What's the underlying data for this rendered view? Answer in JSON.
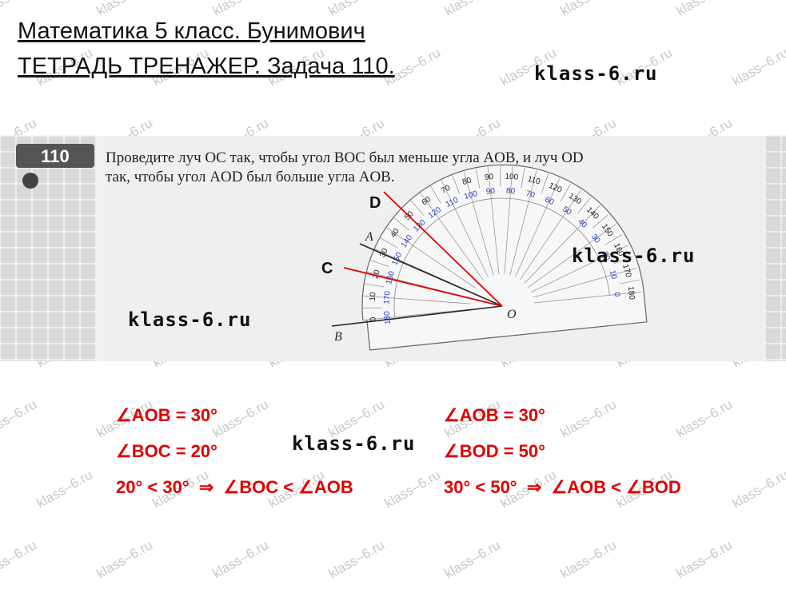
{
  "header": {
    "lines": [
      "Математика 5 класс. Бунимович",
      "ТЕТРАДЬ ТРЕНАЖЕР. Задача 110."
    ]
  },
  "watermark": {
    "bold": "klass-6.ru",
    "faint": "klass–6.ru"
  },
  "problem": {
    "number": "110",
    "text": [
      "Проведите луч OC так, чтобы угол BOC был меньше угла AOB, и луч OD",
      "так, чтобы угол AOD был больше угла AOB."
    ]
  },
  "figure": {
    "ray_labels": [
      "D",
      "A",
      "C",
      "B",
      "O"
    ],
    "outer_scale": [
      0,
      10,
      20,
      30,
      40,
      50,
      60,
      70,
      80,
      90,
      100,
      110,
      120,
      130,
      140,
      150,
      160,
      170,
      180
    ],
    "inner_scale": [
      180,
      170,
      160,
      150,
      140,
      130,
      120,
      110,
      100,
      90,
      80,
      70,
      60,
      50,
      40,
      30,
      20,
      10,
      0
    ]
  },
  "solution": {
    "left": [
      "∠AOB = 30°",
      "∠BOC = 20°",
      "20° < 30°  ⇒  ∠BOC < ∠AOB"
    ],
    "right": [
      "∠AOB = 30°",
      "∠BOD = 50°",
      "30° < 50°  ⇒  ∠AOB < ∠BOD"
    ]
  }
}
